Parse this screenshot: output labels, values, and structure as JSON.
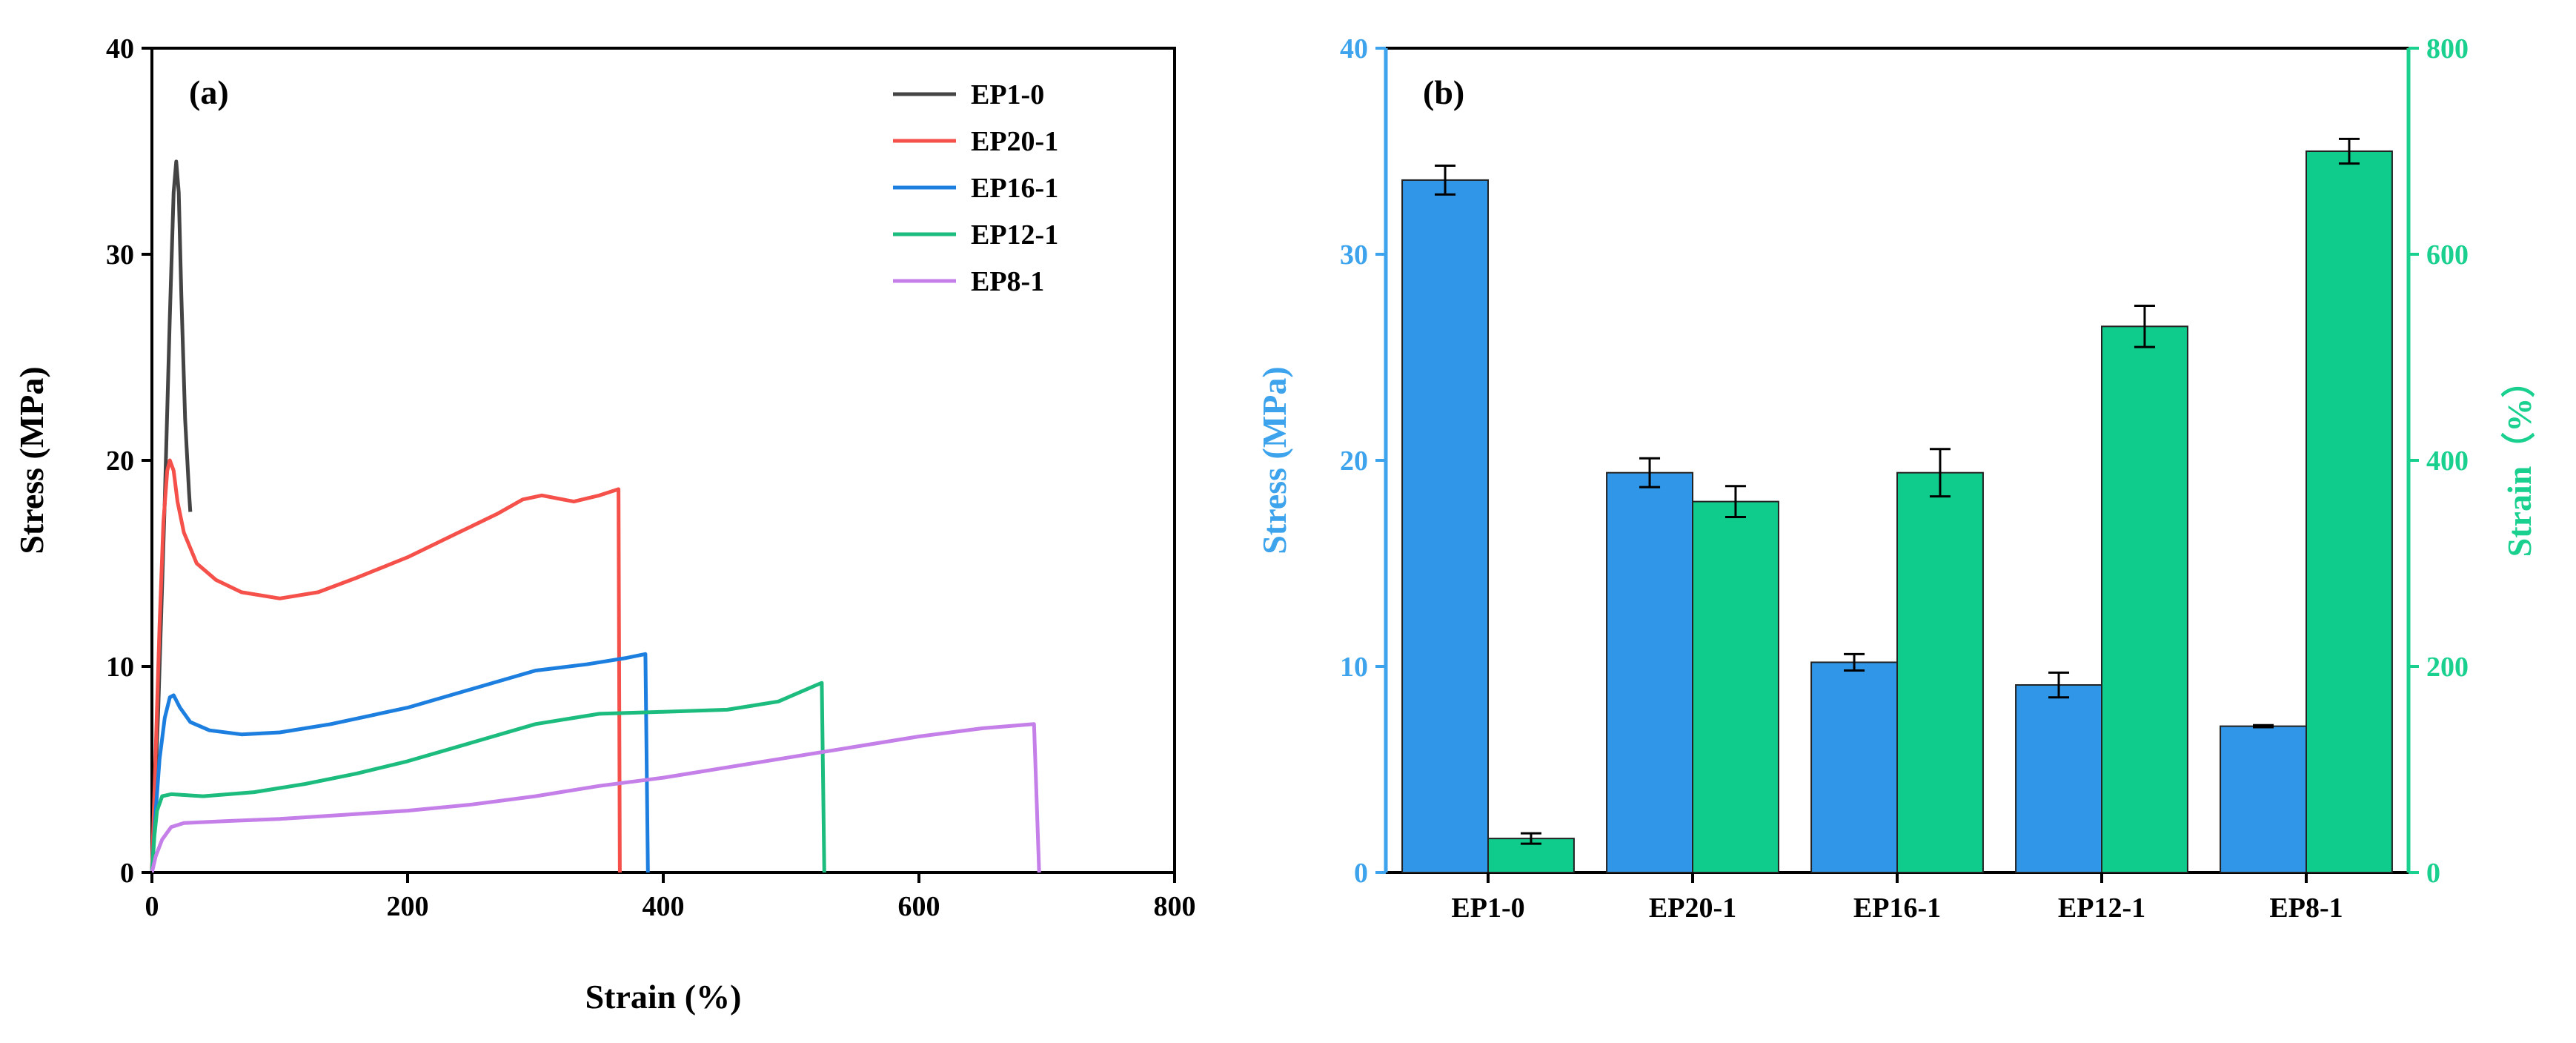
{
  "chart_data": [
    {
      "panel": "(a)",
      "type": "line",
      "title": "",
      "xlabel": "Strain (%)",
      "ylabel": "Stress (MPa)",
      "xlim": [
        0,
        800
      ],
      "ylim": [
        0,
        40
      ],
      "xticks": [
        "0",
        "200",
        "400",
        "600",
        "800"
      ],
      "yticks": [
        "0",
        "10",
        "20",
        "30",
        "40"
      ],
      "legend_position": "top-right",
      "series": [
        {
          "name": "EP1-0",
          "color": "#444444",
          "points": [
            [
              0,
              0
            ],
            [
              5,
              8
            ],
            [
              10,
              18
            ],
            [
              14,
              27
            ],
            [
              17,
              33
            ],
            [
              19,
              34.5
            ],
            [
              21,
              33
            ],
            [
              23,
              28
            ],
            [
              26,
              22
            ],
            [
              29,
              18.5
            ],
            [
              30,
              17.5
            ]
          ]
        },
        {
          "name": "EP20-1",
          "color": "#f5504a",
          "points": [
            [
              0,
              0
            ],
            [
              3,
              6
            ],
            [
              6,
              12
            ],
            [
              9,
              17
            ],
            [
              12,
              19.5
            ],
            [
              14,
              20
            ],
            [
              17,
              19.5
            ],
            [
              20,
              18
            ],
            [
              25,
              16.5
            ],
            [
              35,
              15
            ],
            [
              50,
              14.2
            ],
            [
              70,
              13.6
            ],
            [
              100,
              13.3
            ],
            [
              130,
              13.6
            ],
            [
              160,
              14.3
            ],
            [
              200,
              15.3
            ],
            [
              240,
              16.5
            ],
            [
              270,
              17.4
            ],
            [
              290,
              18.1
            ],
            [
              305,
              18.3
            ],
            [
              330,
              18.0
            ],
            [
              350,
              18.3
            ],
            [
              365,
              18.6
            ],
            [
              366,
              0
            ]
          ]
        },
        {
          "name": "EP16-1",
          "color": "#1c7fe0",
          "points": [
            [
              0,
              0
            ],
            [
              3,
              3
            ],
            [
              6,
              5.5
            ],
            [
              10,
              7.5
            ],
            [
              14,
              8.5
            ],
            [
              17,
              8.6
            ],
            [
              22,
              8
            ],
            [
              30,
              7.3
            ],
            [
              45,
              6.9
            ],
            [
              70,
              6.7
            ],
            [
              100,
              6.8
            ],
            [
              140,
              7.2
            ],
            [
              200,
              8.0
            ],
            [
              250,
              8.9
            ],
            [
              300,
              9.8
            ],
            [
              340,
              10.1
            ],
            [
              370,
              10.4
            ],
            [
              386,
              10.6
            ],
            [
              388,
              0
            ]
          ]
        },
        {
          "name": "EP12-1",
          "color": "#1bbc7d",
          "points": [
            [
              0,
              0
            ],
            [
              2,
              1.8
            ],
            [
              4,
              3
            ],
            [
              8,
              3.7
            ],
            [
              15,
              3.8
            ],
            [
              40,
              3.7
            ],
            [
              80,
              3.9
            ],
            [
              120,
              4.3
            ],
            [
              160,
              4.8
            ],
            [
              200,
              5.4
            ],
            [
              250,
              6.3
            ],
            [
              300,
              7.2
            ],
            [
              350,
              7.7
            ],
            [
              400,
              7.8
            ],
            [
              450,
              7.9
            ],
            [
              490,
              8.3
            ],
            [
              520,
              9.1
            ],
            [
              524,
              9.2
            ],
            [
              526,
              0
            ]
          ]
        },
        {
          "name": "EP8-1",
          "color": "#c47fe8",
          "points": [
            [
              0,
              0
            ],
            [
              3,
              0.8
            ],
            [
              8,
              1.6
            ],
            [
              15,
              2.2
            ],
            [
              25,
              2.4
            ],
            [
              60,
              2.5
            ],
            [
              100,
              2.6
            ],
            [
              150,
              2.8
            ],
            [
              200,
              3.0
            ],
            [
              250,
              3.3
            ],
            [
              300,
              3.7
            ],
            [
              350,
              4.2
            ],
            [
              400,
              4.6
            ],
            [
              450,
              5.1
            ],
            [
              500,
              5.6
            ],
            [
              550,
              6.1
            ],
            [
              600,
              6.6
            ],
            [
              650,
              7.0
            ],
            [
              690,
              7.2
            ],
            [
              694,
              0
            ]
          ]
        }
      ]
    },
    {
      "panel": "(b)",
      "type": "bar",
      "title": "",
      "xlabel": "",
      "categories": [
        "EP1-0",
        "EP20-1",
        "EP16-1",
        "EP12-1",
        "EP8-1"
      ],
      "ylabel_left": "Stress (MPa)",
      "ylabel_right": "Strain（%）",
      "ylim_left": [
        0,
        40
      ],
      "ylim_right": [
        0,
        800
      ],
      "yticks_left": [
        "0",
        "10",
        "20",
        "30",
        "40"
      ],
      "yticks_right": [
        "0",
        "200",
        "400",
        "600",
        "800"
      ],
      "series": [
        {
          "name": "Stress",
          "axis": "left",
          "color": "#2f96e8",
          "values": [
            33.6,
            19.4,
            10.2,
            9.1,
            7.1
          ],
          "errors": [
            0.7,
            0.7,
            0.4,
            0.6,
            0.05
          ]
        },
        {
          "name": "Strain",
          "axis": "right",
          "color": "#10cc8c",
          "values": [
            33,
            360,
            388,
            530,
            700
          ],
          "errors": [
            5,
            15,
            23,
            20,
            12
          ]
        }
      ]
    }
  ],
  "colors": {
    "left_axis": "#3da3ec",
    "right_axis": "#19d08f"
  }
}
